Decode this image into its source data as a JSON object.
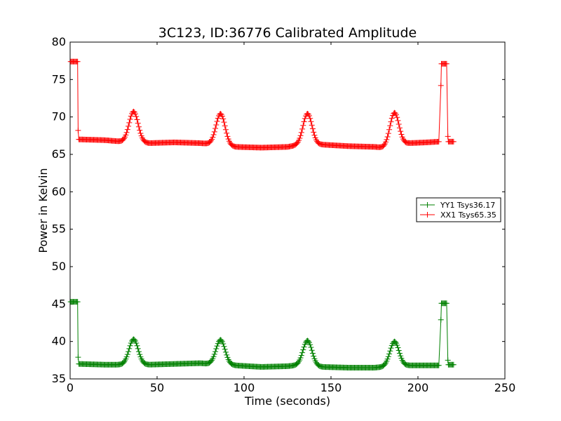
{
  "chart_data": {
    "type": "line",
    "title": "3C123, ID:36776 Calibrated Amplitude",
    "xlabel": "Time (seconds)",
    "ylabel": "Power in Kelvin",
    "xlim": [
      0,
      250
    ],
    "ylim": [
      35,
      80
    ],
    "xticks": [
      0,
      50,
      100,
      150,
      200,
      250
    ],
    "yticks": [
      35,
      40,
      45,
      50,
      55,
      60,
      65,
      70,
      75,
      80
    ],
    "grid": false,
    "marker": "+",
    "legend_position": "center-right",
    "series": [
      {
        "name": "YY1 Tsys36.17",
        "color": "#008000",
        "base": [
          [
            5,
            37.0
          ],
          [
            20,
            36.9
          ],
          [
            30,
            36.9
          ],
          [
            45,
            36.9
          ],
          [
            60,
            37.0
          ],
          [
            75,
            37.1
          ],
          [
            80,
            37.0
          ],
          [
            95,
            36.8
          ],
          [
            110,
            36.6
          ],
          [
            125,
            36.7
          ],
          [
            130,
            36.8
          ],
          [
            145,
            36.6
          ],
          [
            160,
            36.5
          ],
          [
            175,
            36.5
          ],
          [
            180,
            36.6
          ],
          [
            195,
            36.8
          ],
          [
            205,
            36.8
          ],
          [
            212,
            36.8
          ]
        ],
        "peaks": [
          {
            "x": 36.5,
            "height": 3.4
          },
          {
            "x": 86.5,
            "height": 3.3
          },
          {
            "x": 136.5,
            "height": 3.4
          },
          {
            "x": 186.5,
            "height": 3.3
          }
        ],
        "start_segment": {
          "x0": 0.3,
          "x1": 4.3,
          "value": 45.3
        },
        "end_segment": {
          "x0": 213.5,
          "x1": 216.8,
          "value": 45.1
        },
        "end_base": {
          "x0": 217.5,
          "x1": 220.5,
          "value": 36.9
        },
        "transition_points": [
          [
            4.6,
            37.9
          ],
          [
            213.2,
            42.9
          ],
          [
            217.2,
            37.5
          ]
        ]
      },
      {
        "name": "XX1 Tsys65.35",
        "color": "#ff0000",
        "base": [
          [
            5,
            67.0
          ],
          [
            20,
            66.9
          ],
          [
            30,
            66.7
          ],
          [
            45,
            66.5
          ],
          [
            60,
            66.6
          ],
          [
            75,
            66.5
          ],
          [
            80,
            66.4
          ],
          [
            95,
            66.0
          ],
          [
            110,
            65.9
          ],
          [
            125,
            66.0
          ],
          [
            130,
            66.2
          ],
          [
            145,
            66.3
          ],
          [
            160,
            66.1
          ],
          [
            175,
            66.0
          ],
          [
            180,
            65.9
          ],
          [
            195,
            66.5
          ],
          [
            205,
            66.6
          ],
          [
            212,
            66.7
          ]
        ],
        "peaks": [
          {
            "x": 36.5,
            "height": 4.1
          },
          {
            "x": 86.5,
            "height": 4.2
          },
          {
            "x": 136.5,
            "height": 4.2
          },
          {
            "x": 186.5,
            "height": 4.4
          }
        ],
        "start_segment": {
          "x0": 0.3,
          "x1": 4.3,
          "value": 77.4
        },
        "end_segment": {
          "x0": 213.5,
          "x1": 216.8,
          "value": 77.1
        },
        "end_base": {
          "x0": 217.5,
          "x1": 220.5,
          "value": 66.7
        },
        "transition_points": [
          [
            4.6,
            68.2
          ],
          [
            213.2,
            74.2
          ],
          [
            217.2,
            67.4
          ]
        ]
      }
    ]
  }
}
